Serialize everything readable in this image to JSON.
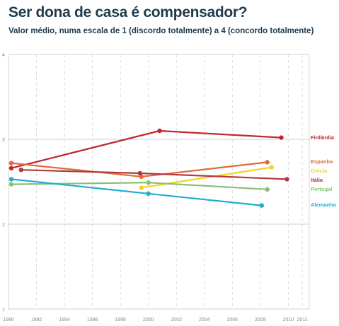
{
  "chart_data": {
    "type": "line",
    "title": "Ser dona de casa é compensador?",
    "subtitle": "Valor médio, numa escala de 1 (discordo totalmente) a 4 (concordo totalmente)",
    "xlabel": "",
    "ylabel": "",
    "xlim": [
      1990,
      2011.5
    ],
    "ylim": [
      1,
      4
    ],
    "x_ticks": [
      1990,
      1992,
      1994,
      1996,
      1998,
      2000,
      2002,
      2004,
      2006,
      2008,
      2010,
      2011
    ],
    "y_ticks": [
      1,
      2,
      3,
      4
    ],
    "grid": true,
    "legend_position": "right",
    "series": [
      {
        "name": "Finlândia",
        "color": "#c0282d",
        "points": [
          [
            1990.2,
            2.66
          ],
          [
            2000.8,
            3.1
          ],
          [
            2009.5,
            3.02
          ]
        ]
      },
      {
        "name": "Espanha",
        "color": "#e06a3b",
        "points": [
          [
            1990.2,
            2.72
          ],
          [
            1999.5,
            2.56
          ],
          [
            2008.5,
            2.73
          ]
        ]
      },
      {
        "name": "Grécia",
        "color": "#f2d027",
        "points": [
          [
            1999.5,
            2.43
          ],
          [
            2008.8,
            2.67
          ]
        ]
      },
      {
        "name": "Itália",
        "color": "#b23a3a",
        "points": [
          [
            1990.9,
            2.64
          ],
          [
            1999.4,
            2.6
          ],
          [
            2009.9,
            2.53
          ]
        ]
      },
      {
        "name": "Portugal",
        "color": "#8cbf73",
        "points": [
          [
            1990.2,
            2.47
          ],
          [
            2000,
            2.49
          ],
          [
            2008.5,
            2.41
          ]
        ]
      },
      {
        "name": "Alemanha",
        "color": "#1eaecf",
        "points": [
          [
            1990.2,
            2.53
          ],
          [
            2000,
            2.36
          ],
          [
            2008.1,
            2.22
          ]
        ]
      }
    ]
  }
}
